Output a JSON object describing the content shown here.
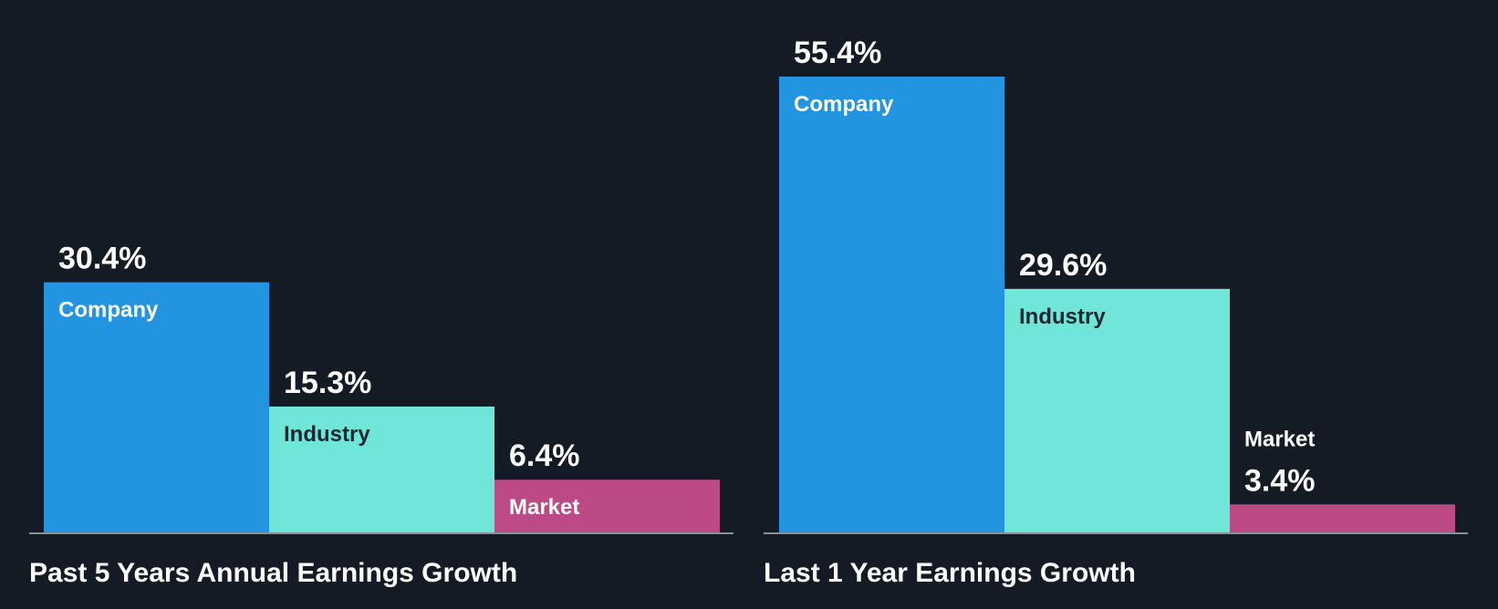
{
  "colors": {
    "background": "#151b24",
    "company": "#2394e0",
    "industry": "#6fe6d7",
    "market": "#bc4a85",
    "axis": "#8a9099",
    "label_on_dark": "#ffffff",
    "label_on_light": "#1d2633"
  },
  "chart_data": [
    {
      "type": "bar",
      "title": "Past 5 Years Annual Earnings Growth",
      "categories": [
        "Company",
        "Industry",
        "Market"
      ],
      "values": [
        30.4,
        15.3,
        6.4
      ],
      "value_labels": [
        "30.4%",
        "15.3%",
        "6.4%"
      ],
      "unit": "%",
      "ylim": [
        0,
        55.4
      ]
    },
    {
      "type": "bar",
      "title": "Last 1 Year Earnings Growth",
      "categories": [
        "Company",
        "Industry",
        "Market"
      ],
      "values": [
        55.4,
        29.6,
        3.4
      ],
      "value_labels": [
        "55.4%",
        "29.6%",
        "3.4%"
      ],
      "unit": "%",
      "ylim": [
        0,
        55.4
      ]
    }
  ]
}
